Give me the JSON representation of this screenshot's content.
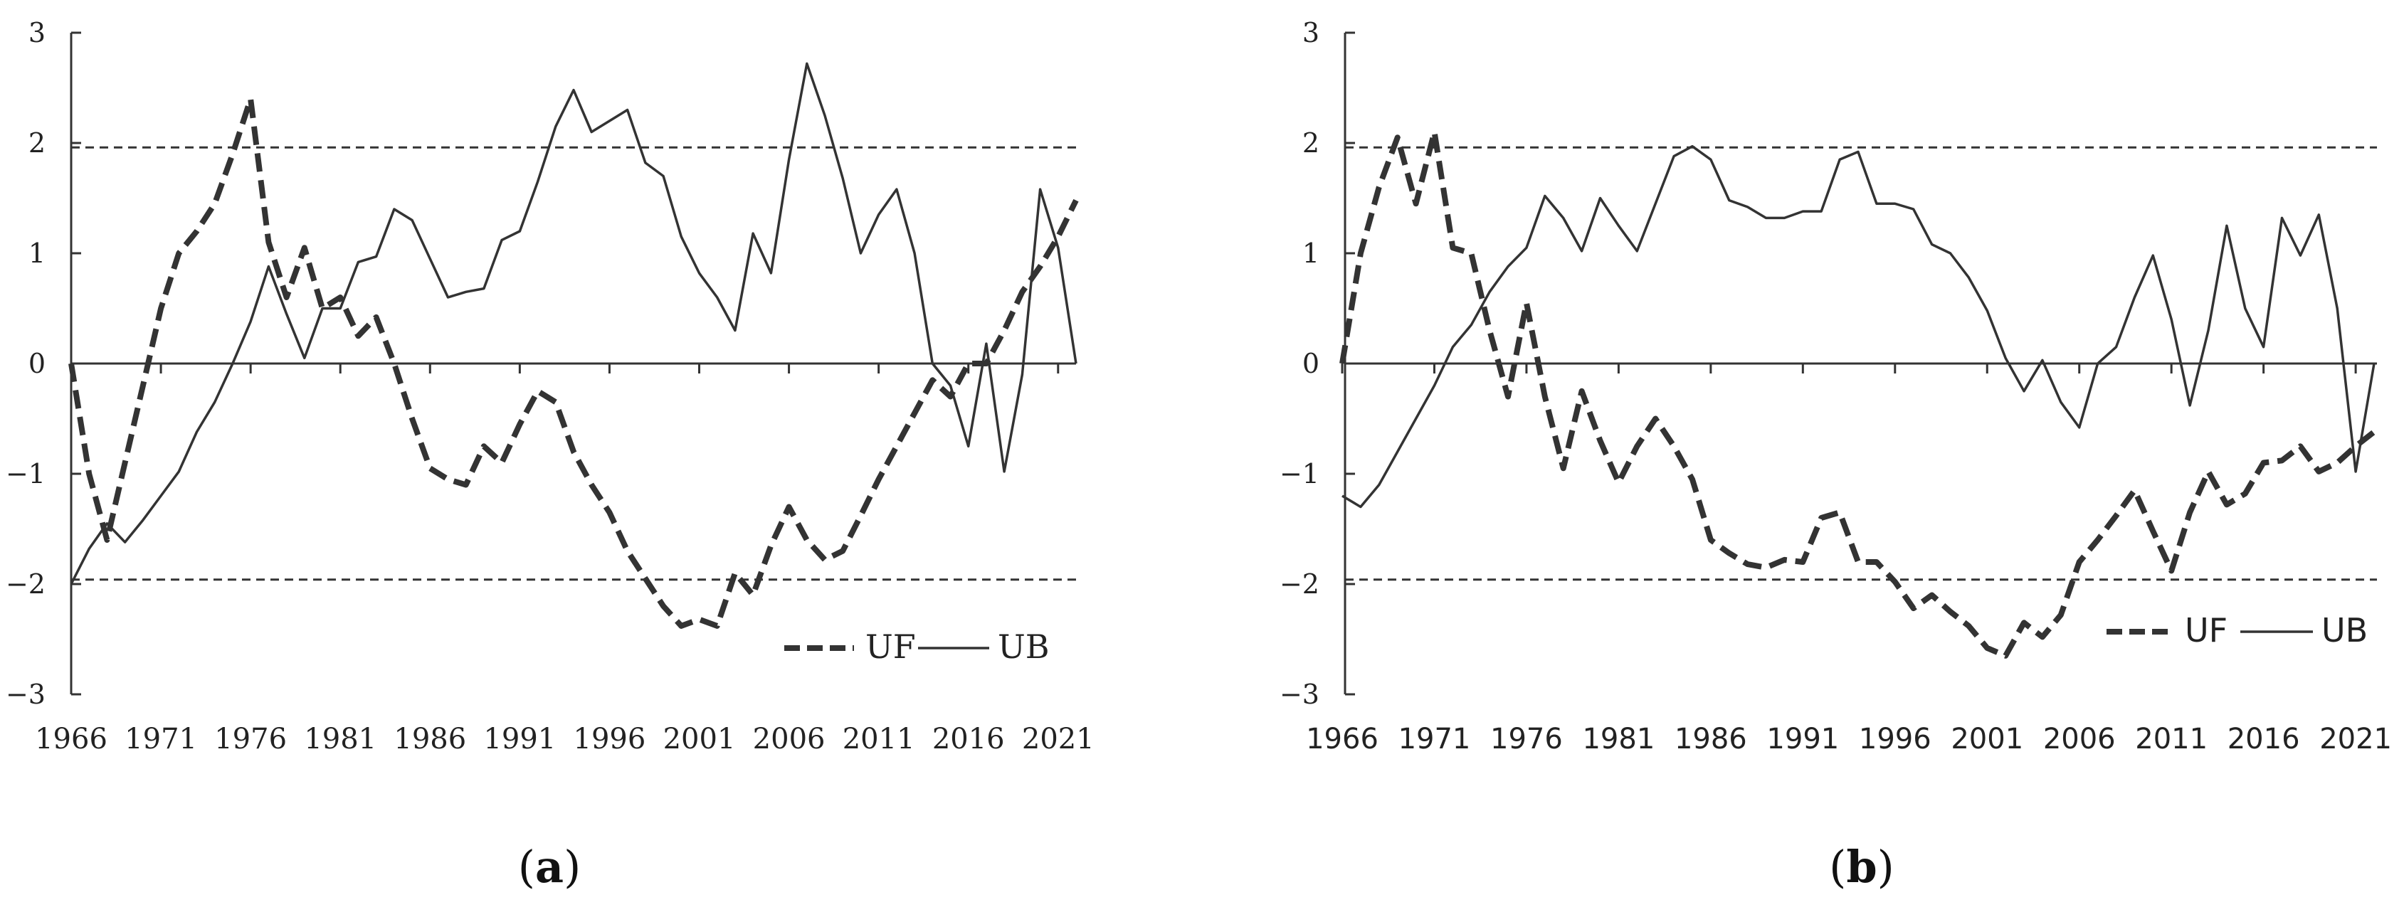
{
  "chart_data": [
    {
      "type": "line",
      "panel_label": "a",
      "ylim": [
        -3,
        3
      ],
      "xlim": [
        1966,
        2022
      ],
      "y_ticks": [
        "3",
        "2",
        "1",
        "0",
        "−1",
        "−2",
        "−3"
      ],
      "x_ticks": [
        "1966",
        "1971",
        "1976",
        "1981",
        "1986",
        "1991",
        "1996",
        "2001",
        "2006",
        "2011",
        "2016",
        "2021"
      ],
      "reference_lines": [
        1.96,
        -1.96
      ],
      "legend": [
        "UF",
        "UB"
      ],
      "legend_position": "bottom-right",
      "grid": false,
      "series": [
        {
          "name": "UF",
          "style": "dashed-thick",
          "x": [
            1966,
            1967,
            1968,
            1969,
            1970,
            1971,
            1972,
            1973,
            1974,
            1975,
            1976,
            1977,
            1978,
            1979,
            1980,
            1981,
            1982,
            1983,
            1984,
            1985,
            1986,
            1987,
            1988,
            1989,
            1990,
            1991,
            1992,
            1993,
            1994,
            1995,
            1996,
            1997,
            1998,
            1999,
            2000,
            2001,
            2002,
            2003,
            2004,
            2005,
            2006,
            2007,
            2008,
            2009,
            2010,
            2011,
            2012,
            2013,
            2014,
            2015,
            2016,
            2017,
            2018,
            2019,
            2020,
            2021,
            2022
          ],
          "values": [
            0,
            -1,
            -1.6,
            -0.9,
            -0.2,
            0.5,
            1.0,
            1.2,
            1.45,
            1.9,
            2.4,
            1.1,
            0.6,
            1.05,
            0.5,
            0.6,
            0.25,
            0.42,
            0,
            -0.5,
            -0.95,
            -1.05,
            -1.1,
            -0.75,
            -0.9,
            -0.55,
            -0.25,
            -0.35,
            -0.8,
            -1.1,
            -1.35,
            -1.7,
            -1.95,
            -2.2,
            -2.38,
            -2.32,
            -2.38,
            -1.9,
            -2.1,
            -1.65,
            -1.3,
            -1.6,
            -1.78,
            -1.7,
            -1.38,
            -1.05,
            -0.75,
            -0.45,
            -0.15,
            -0.3,
            0,
            0,
            0.3,
            0.65,
            0.88,
            1.15,
            1.48
          ]
        },
        {
          "name": "UB",
          "style": "solid",
          "x": [
            1966,
            1967,
            1968,
            1969,
            1970,
            1971,
            1972,
            1973,
            1974,
            1975,
            1976,
            1977,
            1978,
            1979,
            1980,
            1981,
            1982,
            1983,
            1984,
            1985,
            1986,
            1987,
            1988,
            1989,
            1990,
            1991,
            1992,
            1993,
            1994,
            1995,
            1996,
            1997,
            1998,
            1999,
            2000,
            2001,
            2002,
            2003,
            2004,
            2005,
            2006,
            2007,
            2008,
            2009,
            2010,
            2011,
            2012,
            2013,
            2014,
            2015,
            2016,
            2017,
            2018,
            2019,
            2020,
            2021,
            2022
          ],
          "values": [
            -2,
            -1.68,
            -1.45,
            -1.62,
            -1.42,
            -1.2,
            -0.98,
            -0.62,
            -0.35,
            0,
            0.38,
            0.88,
            0.45,
            0.05,
            0.5,
            0.5,
            0.92,
            0.97,
            1.4,
            1.3,
            0.95,
            0.6,
            0.65,
            0.68,
            1.12,
            1.2,
            1.65,
            2.15,
            2.48,
            2.1,
            2.2,
            2.3,
            1.82,
            1.7,
            1.15,
            0.82,
            0.6,
            0.3,
            1.18,
            0.82,
            1.85,
            2.72,
            2.25,
            1.68,
            1.0,
            1.35,
            1.58,
            1.0,
            0,
            -0.2,
            -0.75,
            0.18,
            -0.98,
            -0.1,
            1.58,
            1.05,
            0
          ]
        }
      ]
    },
    {
      "type": "line",
      "panel_label": "b",
      "ylim": [
        -3,
        3
      ],
      "xlim": [
        1966,
        2022
      ],
      "y_ticks": [
        "3",
        "2",
        "1",
        "0",
        "−1",
        "−2",
        "−3"
      ],
      "x_ticks": [
        "1966",
        "1971",
        "1976",
        "1981",
        "1986",
        "1991",
        "1996",
        "2001",
        "2006",
        "2011",
        "2016",
        "2021"
      ],
      "reference_lines": [
        1.96,
        -1.96
      ],
      "legend": [
        "UF",
        "UB"
      ],
      "legend_position": "bottom-right",
      "grid": false,
      "series": [
        {
          "name": "UF",
          "style": "dashed-thick",
          "x": [
            1966,
            1967,
            1968,
            1969,
            1970,
            1971,
            1972,
            1973,
            1974,
            1975,
            1976,
            1977,
            1978,
            1979,
            1980,
            1981,
            1982,
            1983,
            1984,
            1985,
            1986,
            1987,
            1988,
            1989,
            1990,
            1991,
            1992,
            1993,
            1994,
            1995,
            1996,
            1997,
            1998,
            1999,
            2000,
            2001,
            2002,
            2003,
            2004,
            2005,
            2006,
            2007,
            2008,
            2009,
            2010,
            2011,
            2012,
            2013,
            2014,
            2015,
            2016,
            2017,
            2018,
            2019,
            2020,
            2021,
            2022
          ],
          "values": [
            0,
            1.0,
            1.6,
            2.05,
            1.45,
            2.1,
            1.05,
            1.0,
            0.3,
            -0.3,
            0.55,
            -0.3,
            -0.95,
            -0.25,
            -0.7,
            -1.08,
            -0.75,
            -0.5,
            -0.75,
            -1.05,
            -1.6,
            -1.72,
            -1.82,
            -1.85,
            -1.78,
            -1.8,
            -1.4,
            -1.35,
            -1.8,
            -1.8,
            -1.98,
            -2.22,
            -2.1,
            -2.25,
            -2.38,
            -2.58,
            -2.65,
            -2.35,
            -2.48,
            -2.28,
            -1.8,
            -1.6,
            -1.38,
            -1.15,
            -1.52,
            -1.88,
            -1.35,
            -0.98,
            -1.28,
            -1.18,
            -0.9,
            -0.88,
            -0.75,
            -0.98,
            -0.9,
            -0.75,
            -0.62
          ]
        },
        {
          "name": "UB",
          "style": "solid",
          "x": [
            1966,
            1967,
            1968,
            1969,
            1970,
            1971,
            1972,
            1973,
            1974,
            1975,
            1976,
            1977,
            1978,
            1979,
            1980,
            1981,
            1982,
            1983,
            1984,
            1985,
            1986,
            1987,
            1988,
            1989,
            1990,
            1991,
            1992,
            1993,
            1994,
            1995,
            1996,
            1997,
            1998,
            1999,
            2000,
            2001,
            2002,
            2003,
            2004,
            2005,
            2006,
            2007,
            2008,
            2009,
            2010,
            2011,
            2012,
            2013,
            2014,
            2015,
            2016,
            2017,
            2018,
            2019,
            2020,
            2021,
            2022
          ],
          "values": [
            -1.2,
            -1.3,
            -1.1,
            -0.8,
            -0.5,
            -0.2,
            0.15,
            0.35,
            0.65,
            0.88,
            1.05,
            1.52,
            1.32,
            1.02,
            1.5,
            1.25,
            1.02,
            1.45,
            1.88,
            1.97,
            1.85,
            1.48,
            1.42,
            1.32,
            1.32,
            1.38,
            1.38,
            1.85,
            1.92,
            1.45,
            1.45,
            1.4,
            1.08,
            1.0,
            0.78,
            0.48,
            0.05,
            -0.25,
            0.03,
            -0.35,
            -0.58,
            0,
            0.15,
            0.6,
            0.98,
            0.4,
            -0.38,
            0.3,
            1.25,
            0.5,
            0.15,
            1.32,
            0.98,
            1.35,
            0.5,
            -0.98,
            0
          ]
        }
      ]
    }
  ]
}
